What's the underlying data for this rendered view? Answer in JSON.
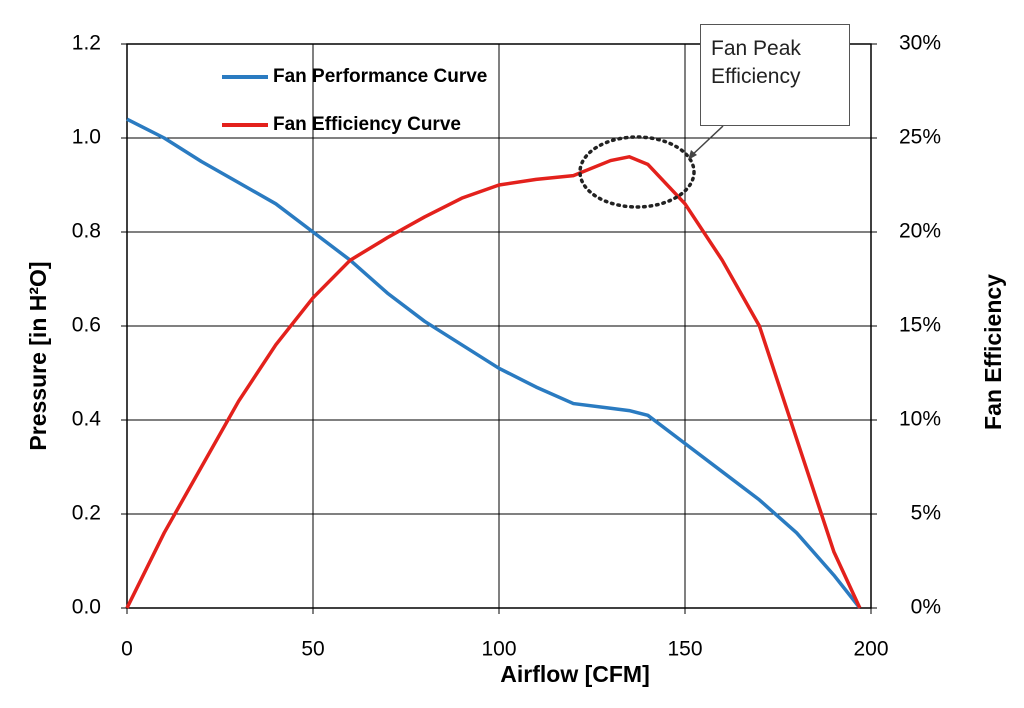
{
  "chart_data": {
    "type": "line",
    "x_label": "Airflow [CFM]",
    "y_label": "Pressure [in H²O]",
    "y2_label": "Fan Efficiency",
    "annotation": "Fan Peak Efficiency",
    "x": [
      0,
      10,
      20,
      30,
      40,
      50,
      60,
      70,
      80,
      90,
      100,
      110,
      120,
      130,
      135,
      140,
      150,
      160,
      170,
      180,
      190,
      197
    ],
    "series": [
      {
        "name": "Fan Performance Curve",
        "color": "#2a7bc1",
        "values": [
          1.04,
          1.0,
          0.95,
          0.905,
          0.86,
          0.8,
          0.74,
          0.67,
          0.61,
          0.56,
          0.51,
          0.47,
          0.435,
          0.425,
          0.42,
          0.41,
          0.35,
          0.29,
          0.23,
          0.16,
          0.07,
          0.0
        ]
      },
      {
        "name": "Fan Efficiency Curve",
        "color": "#e3211c",
        "axis": "y2",
        "values": [
          0,
          4,
          7.5,
          11,
          14,
          16.5,
          18.5,
          19.7,
          20.8,
          21.8,
          22.5,
          22.8,
          23,
          23.8,
          24,
          23.6,
          21.5,
          18.5,
          15,
          9,
          3,
          0
        ]
      }
    ],
    "xlim": [
      0,
      200
    ],
    "xticks": [
      0,
      50,
      100,
      150,
      200
    ],
    "ylim": [
      0,
      1.2
    ],
    "yticks": [
      {
        "value": 0,
        "label": "0.0"
      },
      {
        "value": 0.2,
        "label": "0.2"
      },
      {
        "value": 0.4,
        "label": "0.4"
      },
      {
        "value": 0.6,
        "label": "0.6"
      },
      {
        "value": 0.8,
        "label": "0.8"
      },
      {
        "value": 1,
        "label": "1.0"
      },
      {
        "value": 1.2,
        "label": "1.2"
      }
    ],
    "y2lim": [
      0,
      30
    ],
    "y2ticks": [
      {
        "value": 0,
        "label": "0%"
      },
      {
        "value": 5,
        "label": "5%"
      },
      {
        "value": 10,
        "label": "10%"
      },
      {
        "value": 15,
        "label": "15%"
      },
      {
        "value": 20,
        "label": "20%"
      },
      {
        "value": 25,
        "label": "25%"
      },
      {
        "value": 30,
        "label": "30%"
      }
    ],
    "grid": true,
    "legend": "upper left"
  }
}
